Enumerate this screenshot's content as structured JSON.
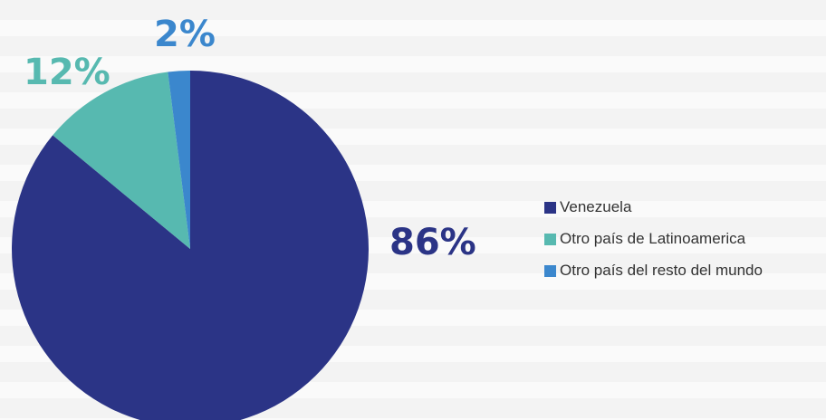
{
  "chart_data": {
    "type": "pie",
    "title": "",
    "start_angle_deg": 0,
    "direction": "clockwise",
    "categories": [
      "Venezuela",
      "Otro país de Latinoamerica",
      "Otro país del resto del mundo"
    ],
    "values": [
      86,
      12,
      2
    ],
    "value_labels": [
      "86%",
      "12%",
      "2%"
    ],
    "colors": [
      "#2b3486",
      "#57b9b0",
      "#3b87cd"
    ],
    "legend_position": "right"
  }
}
